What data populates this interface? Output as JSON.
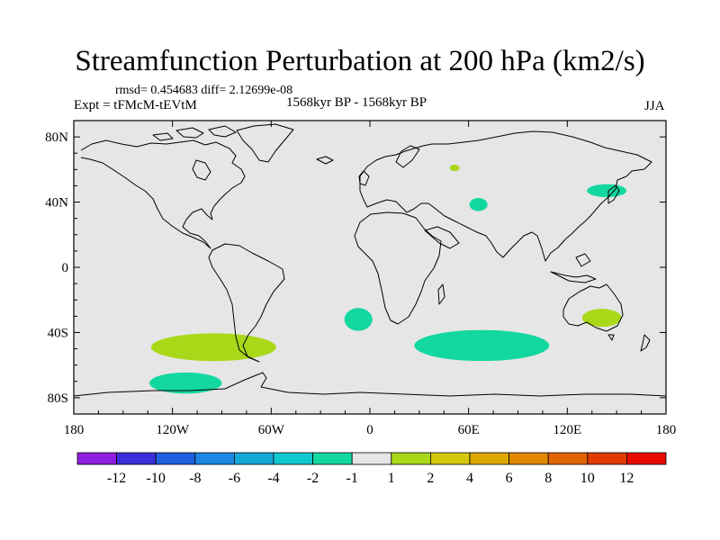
{
  "chart_data": {
    "type": "contour-map",
    "title": "Streamfunction Perturbation at 200 hPa (km2/s)",
    "stats_line": "rmsd= 0.454683 diff= 2.12699e-08",
    "left_label": "Expt = tFMcM-tEVtM",
    "center_label": "1568kyr BP - 1568kyr BP",
    "right_label": "JJA",
    "x_ticks": [
      {
        "lon": -180,
        "label": "180"
      },
      {
        "lon": -120,
        "label": "120W"
      },
      {
        "lon": -60,
        "label": "60W"
      },
      {
        "lon": 0,
        "label": "0"
      },
      {
        "lon": 60,
        "label": "60E"
      },
      {
        "lon": 120,
        "label": "120E"
      },
      {
        "lon": 180,
        "label": "180"
      }
    ],
    "y_ticks": [
      {
        "lat": 80,
        "label": "80N"
      },
      {
        "lat": 40,
        "label": "40N"
      },
      {
        "lat": 0,
        "label": "0"
      },
      {
        "lat": -40,
        "label": "40S"
      },
      {
        "lat": -80,
        "label": "80S"
      }
    ],
    "lon_range": [
      -180,
      180
    ],
    "lat_range": [
      -90,
      90
    ],
    "colorbar": {
      "colors": [
        "#8f1fe0",
        "#3b2fd8",
        "#2060e0",
        "#1c86e0",
        "#14a8d8",
        "#10c8d0",
        "#12d8a0",
        "#e6e6e6",
        "#a8d818",
        "#d4c80c",
        "#dca800",
        "#e08800",
        "#e06400",
        "#e03c00",
        "#e80c00"
      ],
      "labels": [
        "-12",
        "-10",
        "-8",
        "-6",
        "-4",
        "-2",
        "-1",
        "1",
        "2",
        "4",
        "6",
        "8",
        "10",
        "12"
      ]
    },
    "anomalies": [
      {
        "name": "south-atlantic-positive",
        "lon": -95,
        "lat": -49,
        "rlon": 38,
        "rlat": 8.5,
        "value": 2,
        "color": "#a8d818"
      },
      {
        "name": "south-pacific-negative",
        "lon": -112,
        "lat": -71,
        "rlon": 22,
        "rlat": 6.5,
        "value": -1,
        "color": "#12d8a0"
      },
      {
        "name": "south-atlantic-negative",
        "lon": -7,
        "lat": -32,
        "rlon": 8.5,
        "rlat": 7,
        "value": -1,
        "color": "#12d8a0"
      },
      {
        "name": "southern-indian-negative",
        "lon": 68,
        "lat": -48,
        "rlon": 41,
        "rlat": 9.5,
        "value": -1,
        "color": "#12d8a0"
      },
      {
        "name": "australia-positive",
        "lon": 141,
        "lat": -31,
        "rlon": 12,
        "rlat": 5.5,
        "value": 2,
        "color": "#a8d818"
      },
      {
        "name": "caspian-negative",
        "lon": 66,
        "lat": 38.5,
        "rlon": 5.5,
        "rlat": 4,
        "value": -1,
        "color": "#12d8a0"
      },
      {
        "name": "central-asia-positive",
        "lon": 51.5,
        "lat": 61,
        "rlon": 3,
        "rlat": 2,
        "value": 2,
        "color": "#a8d818"
      },
      {
        "name": "east-asia-negative",
        "lon": 144,
        "lat": 47,
        "rlon": 12,
        "rlat": 4,
        "value": -1,
        "color": "#12d8a0"
      }
    ]
  }
}
